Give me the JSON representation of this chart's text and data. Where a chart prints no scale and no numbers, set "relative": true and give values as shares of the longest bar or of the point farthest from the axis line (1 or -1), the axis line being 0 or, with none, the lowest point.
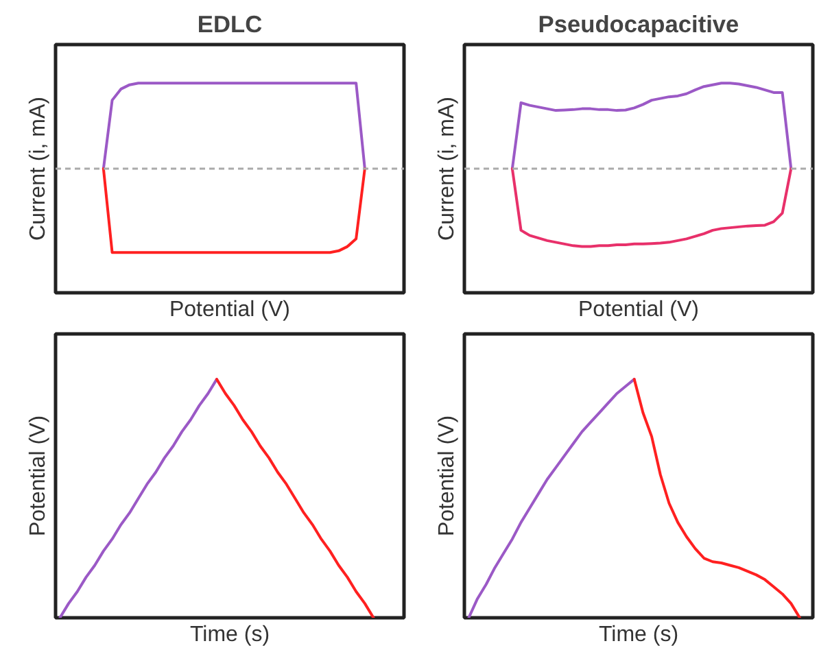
{
  "chart_data": [
    {
      "type": "line",
      "title": "EDLC",
      "xlabel": "Potential (V)",
      "ylabel": "Current (i, mA)",
      "relative": true,
      "categories": [
        null,
        null,
        null,
        null,
        null,
        null,
        null,
        null,
        null,
        null,
        null,
        null,
        null,
        null,
        null,
        null,
        null,
        null,
        null,
        null,
        null,
        null,
        null,
        null,
        null,
        null,
        null,
        null,
        null,
        null,
        null,
        null,
        null,
        null,
        null,
        null,
        null,
        null,
        null,
        null
      ],
      "ref_lines": [
        {
          "axis": "y",
          "value": 0,
          "color": "#aaaaaa",
          "line_style": "dashed"
        }
      ],
      "series": [
        {
          "color": "#9b59c6",
          "values": [
            null,
            null,
            null,
            null,
            null,
            0,
            0.8,
            0.93,
            0.98,
            1,
            1,
            1,
            1,
            1,
            1,
            1,
            1,
            1,
            1,
            1,
            1,
            1,
            1,
            1,
            1,
            1,
            1,
            1,
            1,
            1,
            1,
            1,
            1,
            1,
            1,
            0,
            null,
            null,
            null,
            null
          ]
        },
        {
          "color": "#ff2020",
          "values": [
            null,
            null,
            null,
            null,
            null,
            0,
            -0.98,
            -0.98,
            -0.98,
            -0.98,
            -0.98,
            -0.98,
            -0.98,
            -0.98,
            -0.98,
            -0.98,
            -0.98,
            -0.98,
            -0.98,
            -0.98,
            -0.98,
            -0.98,
            -0.98,
            -0.98,
            -0.98,
            -0.98,
            -0.98,
            -0.98,
            -0.98,
            -0.98,
            -0.98,
            -0.98,
            -0.96,
            -0.91,
            -0.82,
            0,
            null,
            null,
            null,
            null
          ]
        }
      ]
    },
    {
      "type": "line",
      "title": "Pseudocapacitive",
      "xlabel": "Potential (V)",
      "ylabel": "Current (i, mA)",
      "relative": true,
      "categories": [
        null,
        null,
        null,
        null,
        null,
        null,
        null,
        null,
        null,
        null,
        null,
        null,
        null,
        null,
        null,
        null,
        null,
        null,
        null,
        null,
        null,
        null,
        null,
        null,
        null,
        null,
        null,
        null,
        null,
        null,
        null,
        null,
        null,
        null,
        null,
        null,
        null,
        null,
        null,
        null
      ],
      "ref_lines": [
        {
          "axis": "y",
          "value": 0,
          "color": "#aaaaaa",
          "line_style": "dashed"
        }
      ],
      "series": [
        {
          "color": "#9b59c6",
          "values": [
            null,
            null,
            null,
            null,
            null,
            0,
            0.77,
            0.74,
            0.72,
            0.7,
            0.68,
            0.685,
            0.69,
            0.7,
            0.7,
            0.69,
            0.69,
            0.68,
            0.685,
            0.71,
            0.75,
            0.8,
            0.82,
            0.84,
            0.85,
            0.875,
            0.92,
            0.96,
            0.98,
            1,
            1,
            0.99,
            0.97,
            0.95,
            0.92,
            0.89,
            0.89,
            0,
            null,
            null
          ]
        },
        {
          "color": "#e8306a",
          "values": [
            null,
            null,
            null,
            null,
            null,
            0,
            -0.72,
            -0.78,
            -0.81,
            -0.84,
            -0.86,
            -0.88,
            -0.9,
            -0.91,
            -0.91,
            -0.9,
            -0.9,
            -0.89,
            -0.89,
            -0.88,
            -0.88,
            -0.875,
            -0.87,
            -0.86,
            -0.84,
            -0.82,
            -0.79,
            -0.76,
            -0.72,
            -0.7,
            -0.69,
            -0.68,
            -0.67,
            -0.665,
            -0.66,
            -0.62,
            -0.52,
            0,
            null,
            null
          ]
        }
      ]
    },
    {
      "type": "line",
      "xlabel": "Time (s)",
      "ylabel": "Potential (V)",
      "relative": true,
      "categories": [
        null,
        null,
        null,
        null,
        null,
        null,
        null,
        null,
        null,
        null,
        null,
        null,
        null,
        null,
        null,
        null,
        null,
        null,
        null,
        null,
        null,
        null,
        null,
        null,
        null,
        null,
        null,
        null,
        null,
        null,
        null,
        null,
        null,
        null,
        null,
        null,
        null,
        null,
        null,
        null
      ],
      "series": [
        {
          "color": "#9b59c6",
          "values": [
            0,
            0.06,
            0.11,
            0.17,
            0.22,
            0.28,
            0.33,
            0.39,
            0.44,
            0.5,
            0.56,
            0.61,
            0.67,
            0.72,
            0.78,
            0.83,
            0.89,
            0.94,
            1,
            null,
            null,
            null,
            null,
            null,
            null,
            null,
            null,
            null,
            null,
            null,
            null,
            null,
            null,
            null,
            null,
            null,
            null,
            null,
            null,
            null
          ]
        },
        {
          "color": "#ff2020",
          "values": [
            null,
            null,
            null,
            null,
            null,
            null,
            null,
            null,
            null,
            null,
            null,
            null,
            null,
            null,
            null,
            null,
            null,
            null,
            1,
            0.94,
            0.89,
            0.83,
            0.78,
            0.72,
            0.67,
            0.61,
            0.56,
            0.5,
            0.44,
            0.39,
            0.33,
            0.28,
            0.22,
            0.17,
            0.11,
            0.06,
            0,
            null,
            null,
            null
          ]
        }
      ]
    },
    {
      "type": "line",
      "xlabel": "Time (s)",
      "ylabel": "Potential (V)",
      "relative": true,
      "categories": [
        null,
        null,
        null,
        null,
        null,
        null,
        null,
        null,
        null,
        null,
        null,
        null,
        null,
        null,
        null,
        null,
        null,
        null,
        null,
        null,
        null,
        null,
        null,
        null,
        null,
        null,
        null,
        null,
        null,
        null,
        null,
        null,
        null,
        null,
        null,
        null,
        null,
        null,
        null,
        null
      ],
      "series": [
        {
          "color": "#9b59c6",
          "values": [
            0,
            0.08,
            0.14,
            0.21,
            0.27,
            0.33,
            0.4,
            0.46,
            0.52,
            0.58,
            0.63,
            0.68,
            0.73,
            0.78,
            0.82,
            0.86,
            0.9,
            0.94,
            0.97,
            1,
            null,
            null,
            null,
            null,
            null,
            null,
            null,
            null,
            null,
            null,
            null,
            null,
            null,
            null,
            null,
            null,
            null,
            null,
            null,
            null
          ]
        },
        {
          "color": "#ff2020",
          "values": [
            null,
            null,
            null,
            null,
            null,
            null,
            null,
            null,
            null,
            null,
            null,
            null,
            null,
            null,
            null,
            null,
            null,
            null,
            null,
            1,
            0.86,
            0.76,
            0.6,
            0.48,
            0.4,
            0.34,
            0.29,
            0.25,
            0.235,
            0.23,
            0.22,
            0.21,
            0.195,
            0.18,
            0.16,
            0.13,
            0.1,
            0.06,
            0,
            null
          ]
        }
      ]
    }
  ]
}
